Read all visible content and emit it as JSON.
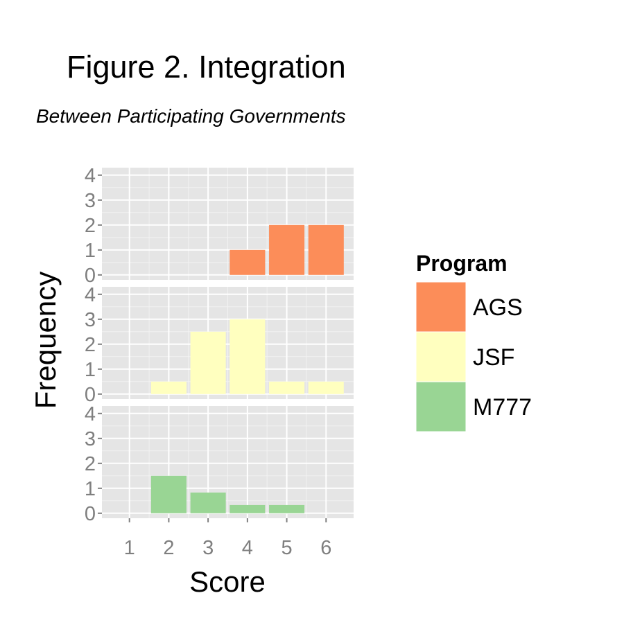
{
  "chart_data": {
    "type": "bar",
    "title": "Figure 2.  Integration",
    "subtitle": "Between Participating Governments",
    "xlabel": "Score",
    "ylabel": "Frequency",
    "x": [
      1,
      2,
      3,
      4,
      5,
      6
    ],
    "xlim": [
      0.3,
      6.7
    ],
    "ylim": [
      -0.2,
      4.3
    ],
    "y_ticks": [
      0,
      1,
      2,
      3,
      4
    ],
    "grid": true,
    "faceted": true,
    "legend": {
      "title": "Program",
      "position": "right"
    },
    "colors": {
      "panel_background": "#e5e5e5",
      "grid": "#ffffff",
      "tick_text": "#7f7f7f"
    },
    "series": [
      {
        "name": "AGS",
        "color": "#fc8d59",
        "values": [
          0,
          0,
          0,
          1,
          2,
          2
        ]
      },
      {
        "name": "JSF",
        "color": "#ffffbf",
        "values": [
          0,
          0.5,
          2.5,
          3,
          0.5,
          0.5
        ]
      },
      {
        "name": "M777",
        "color": "#99d594",
        "values": [
          0,
          1.5,
          0.83,
          0.33,
          0.33,
          0
        ]
      }
    ]
  }
}
